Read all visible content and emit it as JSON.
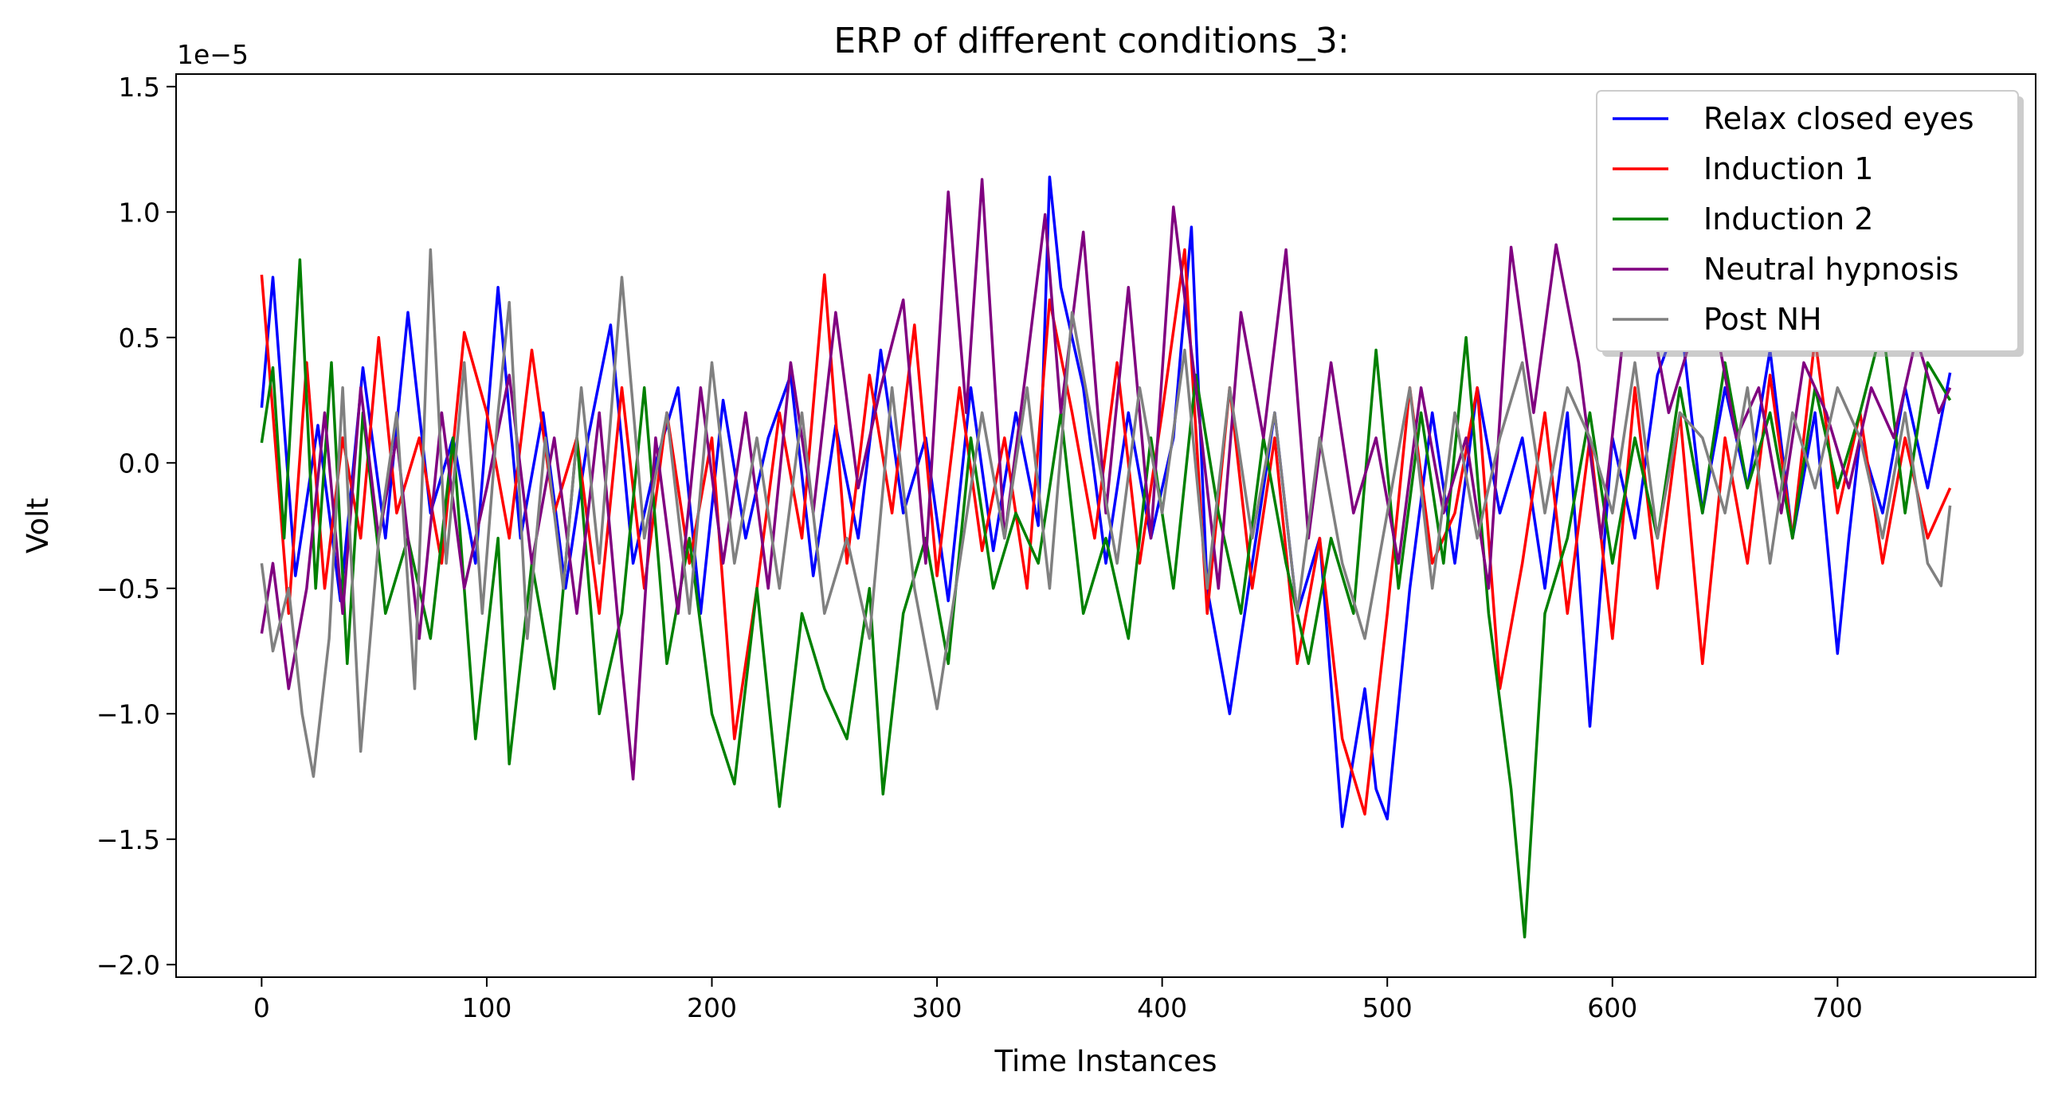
{
  "chart_data": {
    "type": "line",
    "title": "ERP of different conditions_3:",
    "xlabel": "Time Instances",
    "ylabel": "Volt",
    "y_offset_text": "1e−5",
    "xlim": [
      -38,
      788
    ],
    "ylim": [
      -2.05,
      1.55
    ],
    "xticks": [
      0,
      100,
      200,
      300,
      400,
      500,
      600,
      700
    ],
    "yticks": [
      -2.0,
      -1.5,
      -1.0,
      -0.5,
      0.0,
      0.5,
      1.0,
      1.5
    ],
    "ytick_labels": [
      "−2.0",
      "−1.5",
      "−1.0",
      "−0.5",
      "0.0",
      "0.5",
      "1.0",
      "1.5"
    ],
    "grid": false,
    "legend_position": "top-right",
    "series": [
      {
        "name": "Relax closed eyes",
        "color": "#0000ff",
        "x": [
          0,
          5,
          15,
          25,
          35,
          45,
          55,
          65,
          75,
          85,
          95,
          105,
          115,
          125,
          135,
          145,
          155,
          165,
          175,
          185,
          195,
          205,
          215,
          225,
          235,
          245,
          255,
          265,
          275,
          285,
          295,
          305,
          315,
          325,
          335,
          345,
          350,
          355,
          365,
          375,
          385,
          395,
          405,
          413,
          420,
          430,
          440,
          450,
          460,
          470,
          480,
          490,
          495,
          500,
          510,
          520,
          530,
          540,
          550,
          560,
          570,
          580,
          590,
          600,
          610,
          620,
          630,
          640,
          650,
          660,
          670,
          680,
          690,
          700,
          705,
          710,
          720,
          730,
          740,
          750
        ],
        "y": [
          0.22,
          0.74,
          -0.45,
          0.15,
          -0.55,
          0.38,
          -0.3,
          0.6,
          -0.2,
          0.1,
          -0.4,
          0.7,
          -0.3,
          0.2,
          -0.5,
          0.1,
          0.55,
          -0.4,
          0.0,
          0.3,
          -0.6,
          0.25,
          -0.3,
          0.1,
          0.35,
          -0.45,
          0.15,
          -0.3,
          0.45,
          -0.2,
          0.1,
          -0.55,
          0.3,
          -0.35,
          0.2,
          -0.25,
          1.14,
          0.7,
          0.3,
          -0.4,
          0.2,
          -0.3,
          0.1,
          0.94,
          -0.5,
          -1.0,
          -0.4,
          0.2,
          -0.6,
          -0.3,
          -1.45,
          -0.9,
          -1.3,
          -1.42,
          -0.5,
          0.2,
          -0.4,
          0.3,
          -0.2,
          0.1,
          -0.5,
          0.2,
          -1.05,
          0.1,
          -0.3,
          0.35,
          0.6,
          -0.2,
          0.3,
          -0.1,
          0.45,
          -0.3,
          0.2,
          -0.76,
          -0.3,
          0.1,
          -0.2,
          0.3,
          -0.1,
          0.36
        ]
      },
      {
        "name": "Induction 1",
        "color": "#ff0000",
        "x": [
          0,
          5,
          12,
          20,
          28,
          36,
          44,
          52,
          60,
          70,
          80,
          90,
          100,
          110,
          120,
          130,
          140,
          150,
          160,
          170,
          180,
          190,
          200,
          210,
          220,
          230,
          240,
          250,
          260,
          270,
          280,
          290,
          300,
          310,
          320,
          330,
          340,
          350,
          360,
          370,
          380,
          390,
          400,
          410,
          420,
          430,
          440,
          450,
          460,
          470,
          480,
          490,
          500,
          510,
          520,
          530,
          540,
          550,
          560,
          570,
          580,
          590,
          600,
          610,
          620,
          630,
          640,
          650,
          660,
          670,
          680,
          690,
          700,
          710,
          720,
          730,
          740,
          750
        ],
        "y": [
          0.75,
          0.2,
          -0.6,
          0.4,
          -0.5,
          0.1,
          -0.3,
          0.5,
          -0.2,
          0.1,
          -0.4,
          0.52,
          0.2,
          -0.3,
          0.45,
          -0.2,
          0.1,
          -0.6,
          0.3,
          -0.5,
          0.2,
          -0.4,
          0.1,
          -1.1,
          -0.5,
          0.2,
          -0.3,
          0.75,
          -0.4,
          0.35,
          -0.2,
          0.55,
          -0.45,
          0.3,
          -0.35,
          0.1,
          -0.5,
          0.65,
          0.2,
          -0.3,
          0.4,
          -0.4,
          0.2,
          0.85,
          -0.6,
          0.3,
          -0.5,
          0.1,
          -0.8,
          -0.3,
          -1.1,
          -1.4,
          -0.6,
          0.3,
          -0.4,
          -0.2,
          0.3,
          -0.9,
          -0.4,
          0.2,
          -0.6,
          0.1,
          -0.7,
          0.3,
          -0.5,
          0.2,
          -0.8,
          0.1,
          -0.4,
          0.35,
          -0.3,
          0.5,
          -0.2,
          0.2,
          -0.4,
          0.1,
          -0.3,
          -0.1
        ]
      },
      {
        "name": "Induction 2",
        "color": "#008000",
        "x": [
          0,
          5,
          10,
          17,
          24,
          31,
          38,
          45,
          55,
          65,
          75,
          85,
          95,
          105,
          110,
          120,
          130,
          140,
          150,
          160,
          170,
          180,
          190,
          200,
          210,
          220,
          230,
          240,
          250,
          260,
          270,
          276,
          285,
          295,
          305,
          315,
          325,
          335,
          345,
          355,
          365,
          375,
          385,
          395,
          405,
          415,
          425,
          435,
          445,
          455,
          465,
          475,
          485,
          495,
          505,
          515,
          525,
          535,
          545,
          555,
          561,
          570,
          580,
          590,
          600,
          610,
          620,
          630,
          640,
          650,
          660,
          670,
          680,
          690,
          700,
          710,
          720,
          730,
          740,
          750
        ],
        "y": [
          0.08,
          0.38,
          -0.3,
          0.81,
          -0.5,
          0.4,
          -0.8,
          0.2,
          -0.6,
          -0.3,
          -0.7,
          0.1,
          -1.1,
          -0.3,
          -1.2,
          -0.4,
          -0.9,
          0.1,
          -1.0,
          -0.6,
          0.3,
          -0.8,
          -0.3,
          -1.0,
          -1.28,
          -0.5,
          -1.37,
          -0.6,
          -0.9,
          -1.1,
          -0.5,
          -1.32,
          -0.6,
          -0.3,
          -0.8,
          0.1,
          -0.5,
          -0.2,
          -0.4,
          0.2,
          -0.6,
          -0.3,
          -0.7,
          0.1,
          -0.5,
          0.35,
          -0.2,
          -0.6,
          0.1,
          -0.4,
          -0.8,
          -0.3,
          -0.6,
          0.45,
          -0.5,
          0.2,
          -0.4,
          0.5,
          -0.6,
          -1.3,
          -1.89,
          -0.6,
          -0.3,
          0.2,
          -0.4,
          0.1,
          -0.3,
          0.3,
          -0.2,
          0.4,
          -0.1,
          0.2,
          -0.3,
          0.3,
          -0.1,
          0.2,
          0.55,
          -0.2,
          0.4,
          0.25
        ]
      },
      {
        "name": "Neutral hypnosis",
        "color": "#800080",
        "x": [
          0,
          5,
          12,
          20,
          28,
          36,
          44,
          52,
          60,
          70,
          80,
          90,
          100,
          110,
          120,
          130,
          140,
          150,
          160,
          165,
          175,
          185,
          195,
          205,
          215,
          225,
          235,
          245,
          255,
          265,
          275,
          285,
          295,
          305,
          313,
          320,
          330,
          340,
          348,
          355,
          365,
          375,
          385,
          395,
          405,
          415,
          425,
          435,
          445,
          455,
          465,
          475,
          485,
          495,
          505,
          515,
          525,
          535,
          545,
          555,
          565,
          575,
          585,
          595,
          605,
          615,
          625,
          635,
          645,
          655,
          665,
          675,
          685,
          695,
          705,
          715,
          725,
          735,
          745,
          750
        ],
        "y": [
          -0.68,
          -0.4,
          -0.9,
          -0.5,
          0.2,
          -0.6,
          0.3,
          -0.3,
          0.1,
          -0.7,
          0.2,
          -0.5,
          -0.1,
          0.35,
          -0.4,
          0.1,
          -0.6,
          0.2,
          -0.8,
          -1.26,
          0.1,
          -0.6,
          0.3,
          -0.4,
          0.2,
          -0.5,
          0.4,
          -0.2,
          0.6,
          -0.1,
          0.3,
          0.65,
          -0.4,
          1.08,
          0.2,
          1.13,
          -0.3,
          0.4,
          0.99,
          0.2,
          0.92,
          -0.2,
          0.7,
          -0.3,
          1.02,
          0.3,
          -0.5,
          0.6,
          0.1,
          0.85,
          -0.3,
          0.4,
          -0.2,
          0.1,
          -0.4,
          0.3,
          -0.2,
          0.1,
          -0.5,
          0.86,
          0.2,
          0.87,
          0.4,
          -0.3,
          0.52,
          0.7,
          0.2,
          0.5,
          0.6,
          0.1,
          0.3,
          -0.2,
          0.4,
          0.2,
          -0.1,
          0.3,
          0.1,
          0.5,
          0.2,
          0.3
        ]
      },
      {
        "name": "Post NH",
        "color": "#808080",
        "x": [
          0,
          5,
          12,
          18,
          23,
          30,
          36,
          44,
          52,
          60,
          68,
          75,
          82,
          90,
          98,
          105,
          110,
          118,
          126,
          134,
          142,
          150,
          160,
          170,
          180,
          190,
          200,
          210,
          220,
          230,
          240,
          250,
          260,
          270,
          280,
          290,
          300,
          310,
          320,
          330,
          340,
          350,
          360,
          370,
          380,
          390,
          400,
          410,
          420,
          430,
          440,
          450,
          460,
          470,
          480,
          490,
          500,
          510,
          520,
          530,
          540,
          550,
          560,
          570,
          580,
          590,
          600,
          610,
          620,
          630,
          640,
          650,
          660,
          670,
          680,
          690,
          700,
          710,
          720,
          730,
          740,
          746,
          750
        ],
        "y": [
          -0.4,
          -0.75,
          -0.5,
          -1.0,
          -1.25,
          -0.7,
          0.3,
          -1.15,
          -0.3,
          0.2,
          -0.9,
          0.85,
          -0.4,
          0.4,
          -0.6,
          0.2,
          0.64,
          -0.7,
          0.1,
          -0.5,
          0.3,
          -0.4,
          0.74,
          -0.3,
          0.2,
          -0.6,
          0.4,
          -0.4,
          0.1,
          -0.5,
          0.2,
          -0.6,
          -0.3,
          -0.7,
          0.3,
          -0.5,
          -0.98,
          -0.4,
          0.2,
          -0.3,
          0.3,
          -0.5,
          0.6,
          0.1,
          -0.4,
          0.3,
          -0.2,
          0.45,
          -0.5,
          0.3,
          -0.3,
          0.2,
          -0.6,
          0.1,
          -0.4,
          -0.7,
          -0.2,
          0.3,
          -0.5,
          0.2,
          -0.3,
          0.1,
          0.4,
          -0.2,
          0.3,
          0.1,
          -0.2,
          0.4,
          -0.3,
          0.2,
          0.1,
          -0.2,
          0.3,
          -0.4,
          0.2,
          -0.1,
          0.3,
          0.1,
          -0.3,
          0.2,
          -0.4,
          -0.49,
          -0.17
        ]
      }
    ]
  }
}
